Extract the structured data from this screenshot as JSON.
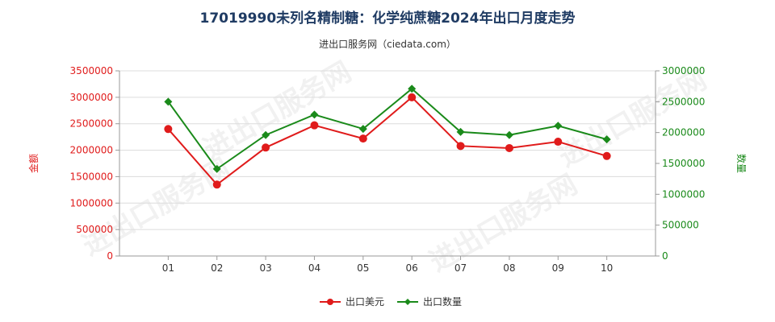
{
  "title": "17019990未列名精制糖：化学纯蔗糖2024年出口月度走势",
  "subtitle": "进出口服务网（ciedata.com）",
  "watermark": "进出口服务网",
  "chart_data": {
    "type": "line",
    "categories": [
      "01",
      "02",
      "03",
      "04",
      "05",
      "06",
      "07",
      "08",
      "09",
      "10"
    ],
    "y_left": {
      "label": "金额",
      "range": [
        0,
        3500000
      ],
      "ticks": [
        "0",
        "500000",
        "1000000",
        "1500000",
        "2000000",
        "2500000",
        "3000000",
        "3500000"
      ],
      "color": "#e01b1b"
    },
    "y_right": {
      "label": "数量",
      "range": [
        0,
        3000000
      ],
      "ticks": [
        "0",
        "500000",
        "1000000",
        "1500000",
        "2000000",
        "2500000",
        "3000000"
      ],
      "color": "#1a8a1a"
    },
    "series": [
      {
        "name": "出口美元",
        "axis": "left",
        "color": "#e01b1b",
        "marker": "circle",
        "values": [
          2400000,
          1350000,
          2050000,
          2470000,
          2220000,
          3000000,
          2080000,
          2040000,
          2160000,
          1890000
        ]
      },
      {
        "name": "出口数量",
        "axis": "right",
        "color": "#1a8a1a",
        "marker": "diamond",
        "values": [
          2500000,
          1410000,
          1960000,
          2290000,
          2060000,
          2710000,
          2010000,
          1960000,
          2110000,
          1890000
        ]
      }
    ],
    "legend_position": "bottom-center",
    "grid": true
  }
}
